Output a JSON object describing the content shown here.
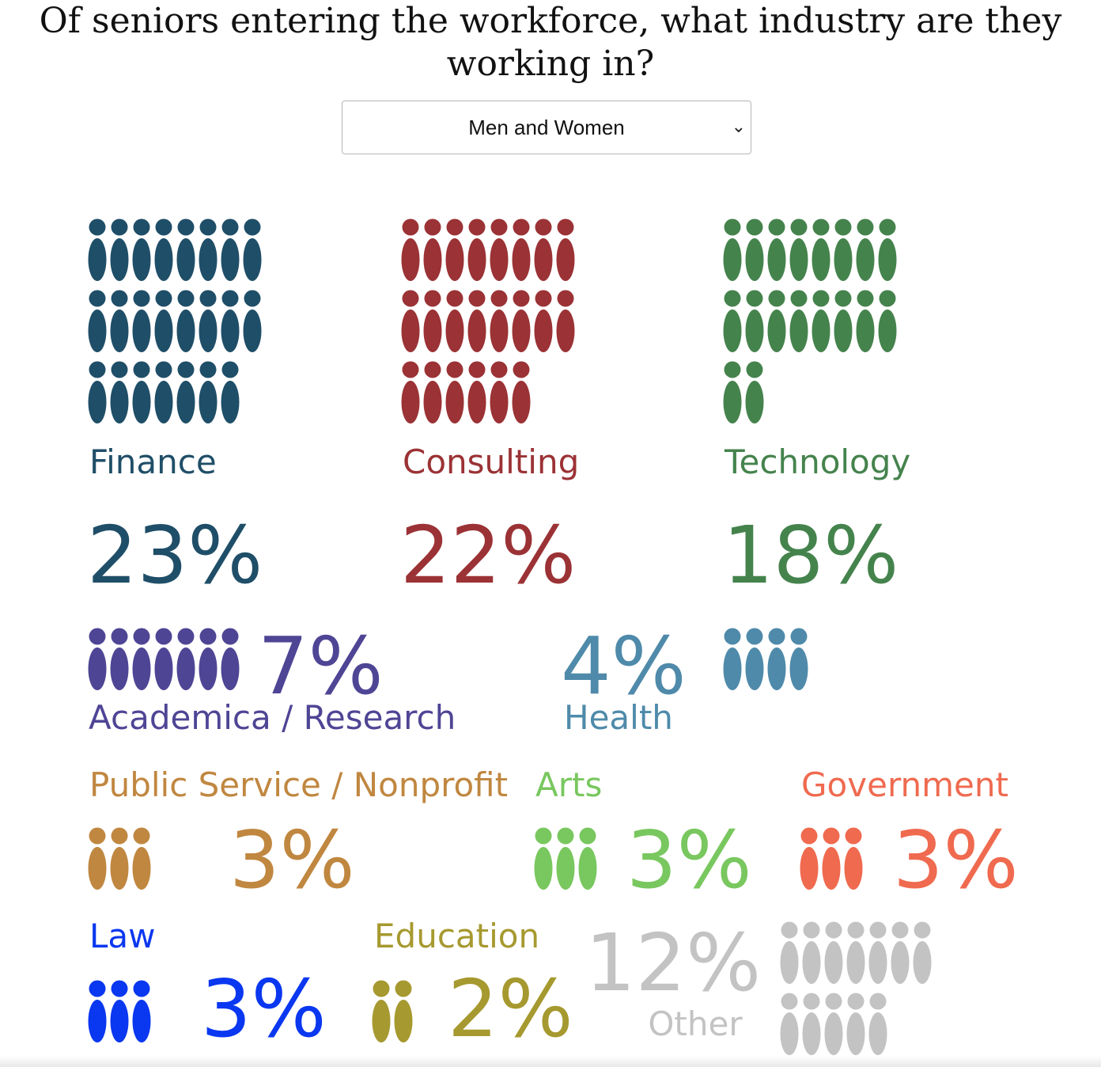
{
  "title": "Of seniors entering the workforce, what industry are they working in?",
  "filter": {
    "selected": "Men and Women"
  },
  "chart_data": {
    "type": "pictogram",
    "title": "Of seniors entering the workforce, what industry are they working in?",
    "categories": [
      "Finance",
      "Consulting",
      "Technology",
      "Academica / Research",
      "Health",
      "Public Service / Nonprofit",
      "Arts",
      "Government",
      "Law",
      "Education",
      "Other"
    ],
    "series": [
      {
        "values": [
          23,
          22,
          18,
          7,
          4,
          3,
          3,
          3,
          3,
          2,
          12
        ],
        "labels": [
          "23%",
          "22%",
          "18%",
          "7%",
          "4%",
          "3%",
          "3%",
          "3%",
          "3%",
          "2%",
          "12%"
        ],
        "colors": [
          "#1f4e68",
          "#9b3235",
          "#45834d",
          "#4f4595",
          "#4f8aaa",
          "#c08740",
          "#79c75f",
          "#ef6a4f",
          "#0a37f0",
          "#a6992f",
          "#c3c3c3"
        ]
      }
    ]
  }
}
